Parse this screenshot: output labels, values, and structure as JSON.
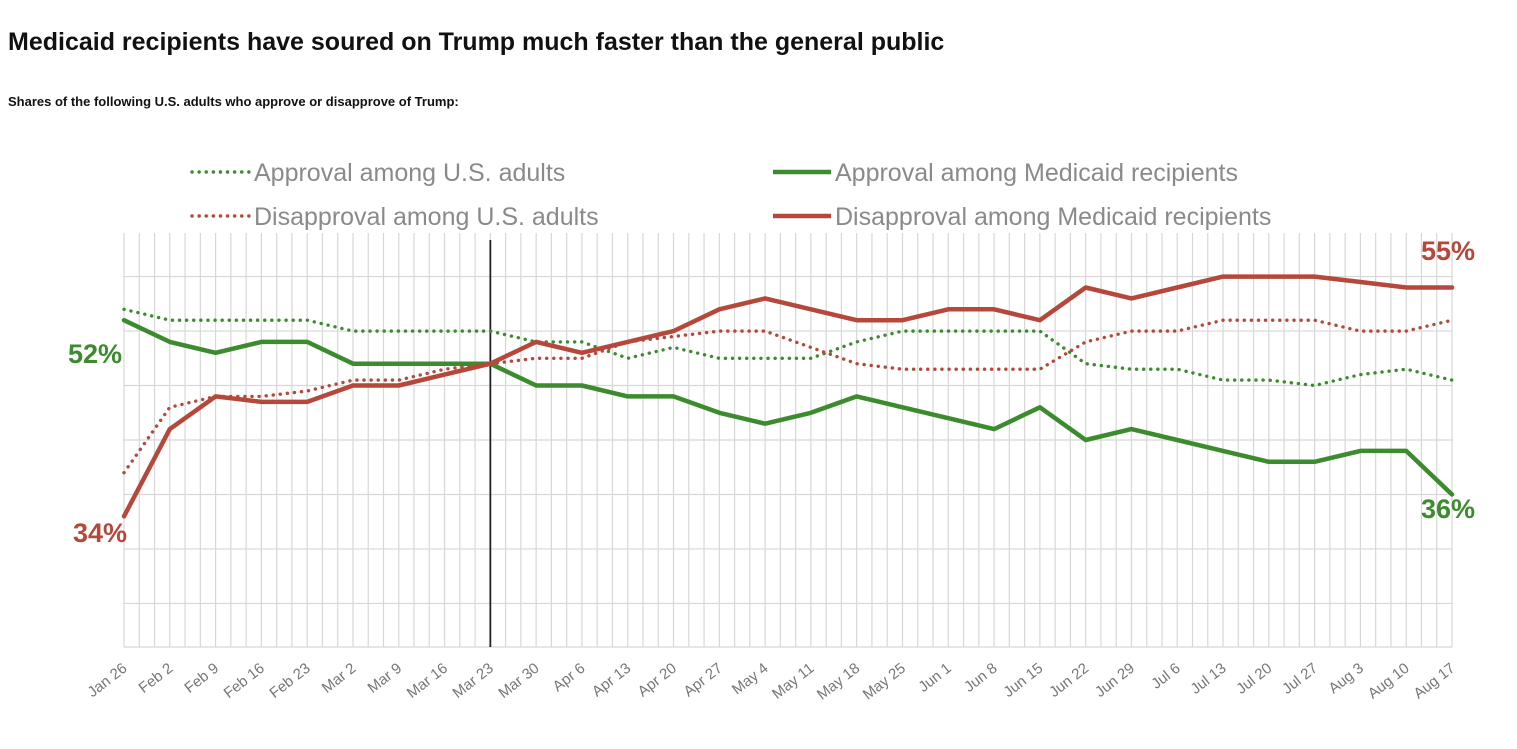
{
  "header": {
    "title": "Medicaid recipients have soured on Trump much faster than the general public",
    "subtitle": "Shares of the following U.S. adults who approve or disapprove of Trump:"
  },
  "colors": {
    "green": "#3d8b2f",
    "red": "#b5483a",
    "grid": "#d7d7d7",
    "marker": "#222222"
  },
  "chart_data": {
    "type": "line",
    "title": "Medicaid recipients have soured on Trump much faster than the general public",
    "subtitle": "Shares of the following U.S. adults who approve or disapprove of Trump:",
    "x": [
      "Jan 26",
      "Feb 2",
      "Feb 9",
      "Feb 16",
      "Feb 23",
      "Mar 2",
      "Mar 9",
      "Mar 16",
      "Mar 23",
      "Mar 30",
      "Apr 6",
      "Apr 13",
      "Apr 20",
      "Apr 27",
      "May 4",
      "May 11",
      "May 18",
      "May 25",
      "Jun 1",
      "Jun 8",
      "Jun 15",
      "Jun 22",
      "Jun 29",
      "Jul 6",
      "Jul 13",
      "Jul 20",
      "Jul 27",
      "Aug 3",
      "Aug 10",
      "Aug 17"
    ],
    "ylim": [
      22,
      60
    ],
    "grid": true,
    "legend_position": "top",
    "vertical_marker": "Mar 23",
    "series": [
      {
        "name": "Approval among U.S. adults",
        "style": "dotted",
        "color": "#3d8b2f",
        "values": [
          53,
          52,
          52,
          52,
          52,
          51,
          51,
          51,
          51,
          50,
          50,
          48.5,
          49.5,
          48.5,
          48.5,
          48.5,
          50,
          51,
          51,
          51,
          51,
          48,
          47.5,
          47.5,
          46.5,
          46.5,
          46,
          47,
          47.5,
          46.5
        ]
      },
      {
        "name": "Approval among Medicaid recipients",
        "style": "solid",
        "color": "#3d8b2f",
        "values": [
          52,
          50,
          49,
          50,
          50,
          48,
          48,
          48,
          48,
          46,
          46,
          45,
          45,
          43.5,
          42.5,
          43.5,
          45,
          44,
          43,
          42,
          44,
          41,
          42,
          41,
          40,
          39,
          39,
          40,
          40,
          36
        ]
      },
      {
        "name": "Disapproval among U.S. adults",
        "style": "dotted",
        "color": "#b5483a",
        "values": [
          38,
          44,
          45,
          45,
          45.5,
          46.5,
          46.5,
          47.5,
          48,
          48.5,
          48.5,
          50,
          50.5,
          51,
          51,
          49.5,
          48,
          47.5,
          47.5,
          47.5,
          47.5,
          50,
          51,
          51,
          52,
          52,
          52,
          51,
          51,
          52
        ]
      },
      {
        "name": "Disapproval among Medicaid recipients",
        "style": "solid",
        "color": "#b5483a",
        "values": [
          34,
          42,
          45,
          44.5,
          44.5,
          46,
          46,
          47,
          48,
          50,
          49,
          50,
          51,
          53,
          54,
          53,
          52,
          52,
          53,
          53,
          52,
          55,
          54,
          55,
          56,
          56,
          56,
          55.5,
          55,
          55
        ]
      }
    ],
    "annotations": [
      {
        "text": "52%",
        "color": "#3d8b2f",
        "at": "Jan 26"
      },
      {
        "text": "34%",
        "color": "#b5483a",
        "at": "Jan 26"
      },
      {
        "text": "55%",
        "color": "#b5483a",
        "at": "Aug 17"
      },
      {
        "text": "36%",
        "color": "#3d8b2f",
        "at": "Aug 17"
      }
    ]
  }
}
